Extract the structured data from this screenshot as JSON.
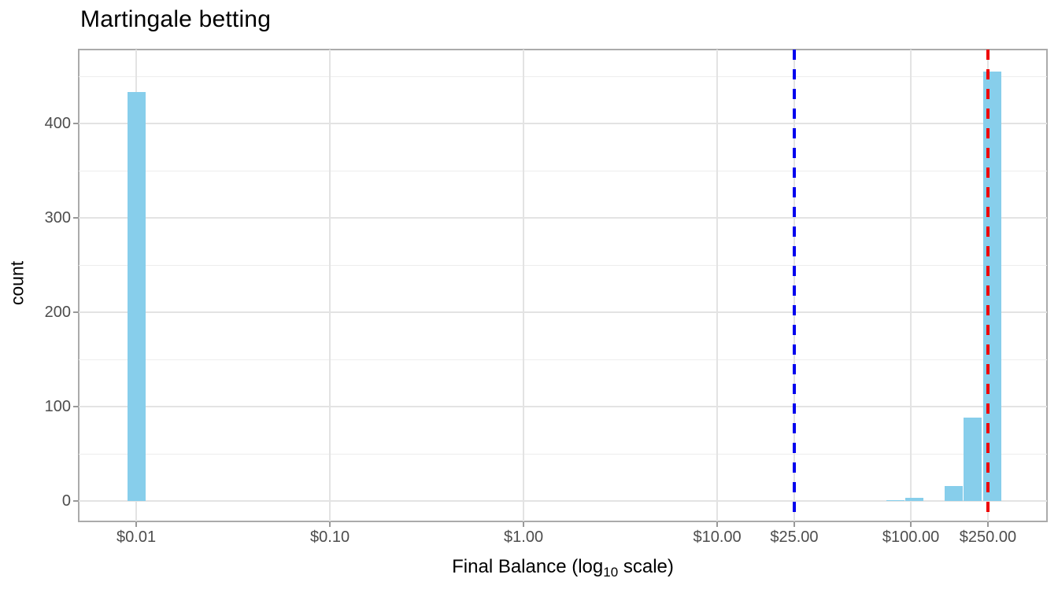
{
  "chart_data": {
    "type": "histogram",
    "title": "Martingale betting",
    "xlabel": "Final Balance (log10 scale)",
    "xlabel_parts": [
      "Final Balance (log",
      "10",
      " scale)"
    ],
    "ylabel": "count",
    "x_scale": "log10",
    "xlim_log": [
      -2.297,
      2.703
    ],
    "ylim": [
      0,
      478
    ],
    "x_ticks": [
      {
        "label": "$0.01",
        "log": -2.0
      },
      {
        "label": "$0.10",
        "log": -1.0
      },
      {
        "label": "$1.00",
        "log": 0.0
      },
      {
        "label": "$10.00",
        "log": 1.0
      },
      {
        "label": "$25.00",
        "log": 1.39794
      },
      {
        "label": "$100.00",
        "log": 2.0
      },
      {
        "label": "$250.00",
        "log": 2.39794
      }
    ],
    "y_ticks": [
      0,
      100,
      200,
      300,
      400
    ],
    "y_minor_ticks": [
      50,
      150,
      250,
      350,
      450
    ],
    "grid": "major-and-minor-horizontal, major-vertical-at-breaks",
    "bin_width_log": 0.1,
    "bins": [
      {
        "approx_value": "$0.01",
        "log_center": -2.0,
        "count": 433
      },
      {
        "approx_value": "$83",
        "log_center": 1.92,
        "count": 1
      },
      {
        "approx_value": "$105",
        "log_center": 2.02,
        "count": 3
      },
      {
        "approx_value": "$166",
        "log_center": 2.22,
        "count": 16
      },
      {
        "approx_value": "$209",
        "log_center": 2.32,
        "count": 88
      },
      {
        "approx_value": "$263",
        "log_center": 2.42,
        "count": 455
      }
    ],
    "reference_lines": [
      {
        "value": "$25.00",
        "log": 1.39794,
        "color": "#0000EE",
        "style": "dashed",
        "orientation": "vertical",
        "name": "blue-dashed-line"
      },
      {
        "value": "$250.00",
        "log": 2.39794,
        "color": "#EE0000",
        "style": "dashed",
        "orientation": "vertical",
        "name": "red-dashed-line"
      }
    ],
    "colors": {
      "bar_fill": "#87CEEB",
      "grid_major": "#E3E3E3",
      "grid_minor": "#EDEDED",
      "panel_border": "#ABABAB",
      "tick_mark": "#999999",
      "axis_text": "#4D4D4D",
      "title_text": "#000000",
      "background": "#FFFFFF"
    },
    "legend": "none"
  }
}
